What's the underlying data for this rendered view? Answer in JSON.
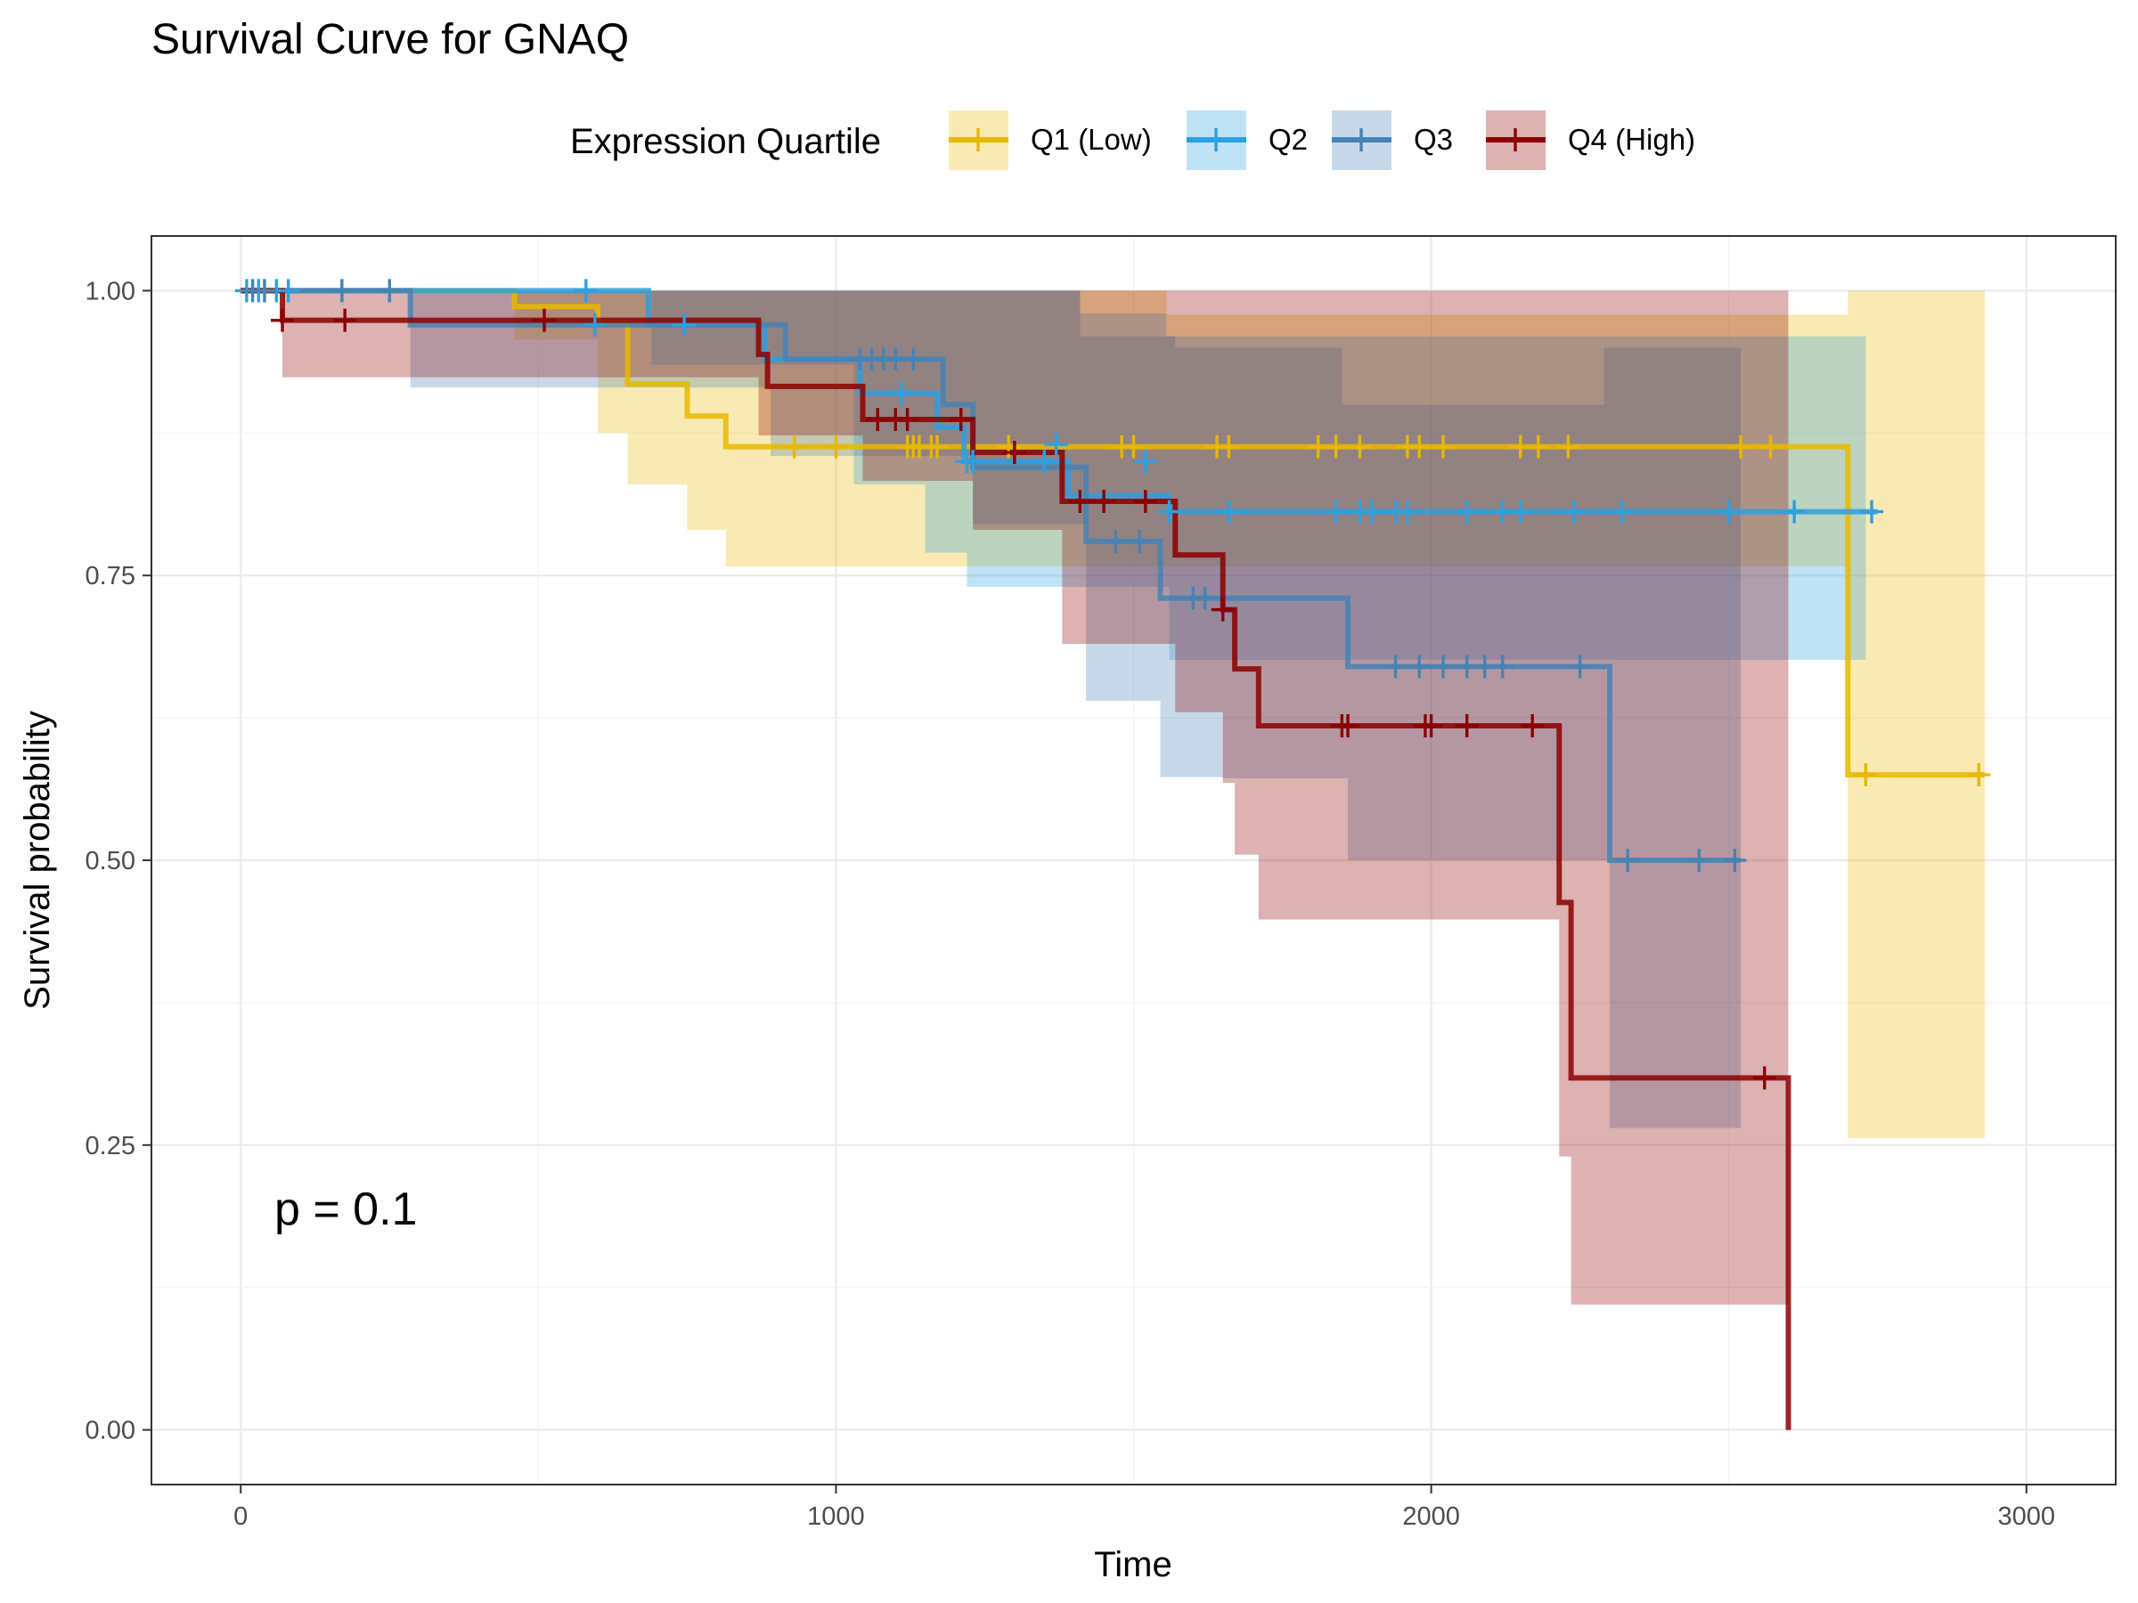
{
  "chart_data": {
    "type": "line",
    "subtype": "kaplan-meier",
    "title": "Survival Curve for GNAQ",
    "xlabel": "Time",
    "ylabel": "Survival probability",
    "xlim": [
      -150,
      3150
    ],
    "ylim": [
      -0.048,
      1.048
    ],
    "x_ticks": [
      0,
      1000,
      2000,
      3000
    ],
    "x_tick_labels": [
      "0",
      "1000",
      "2000",
      "3000"
    ],
    "y_ticks": [
      0,
      0.25,
      0.5,
      0.75,
      1
    ],
    "y_tick_labels": [
      "0.00",
      "0.25",
      "0.50",
      "0.75",
      "1.00"
    ],
    "grid": true,
    "legend_position": "top",
    "legend_title": "Expression Quartile",
    "annotation": "p = 0.1",
    "series": [
      {
        "name": "Q1 (Low)",
        "color": "#E7B800",
        "steps": [
          [
            0,
            1
          ],
          [
            460,
            0.986
          ],
          [
            600,
            0.986
          ],
          [
            600,
            0.972
          ],
          [
            650,
            0.945
          ],
          [
            650,
            0.918
          ],
          [
            750,
            0.918
          ],
          [
            750,
            0.89
          ],
          [
            815,
            0.89
          ],
          [
            815,
            0.863
          ],
          [
            2700,
            0.863
          ],
          [
            2700,
            0.575
          ],
          [
            2930,
            0.575
          ]
        ],
        "ci_upper": [
          [
            0,
            1
          ],
          [
            1555,
            1
          ],
          [
            1555,
            0.979
          ],
          [
            2700,
            0.979
          ],
          [
            2700,
            1
          ],
          [
            2930,
            1
          ]
        ],
        "ci_lower": [
          [
            0,
            1
          ],
          [
            460,
            0.957
          ],
          [
            600,
            0.957
          ],
          [
            600,
            0.875
          ],
          [
            650,
            0.875
          ],
          [
            650,
            0.83
          ],
          [
            750,
            0.83
          ],
          [
            750,
            0.79
          ],
          [
            815,
            0.79
          ],
          [
            815,
            0.758
          ],
          [
            1220,
            0.758
          ],
          [
            1220,
            0.758
          ],
          [
            2700,
            0.758
          ],
          [
            2700,
            0.256
          ],
          [
            2930,
            0.256
          ]
        ],
        "censors": [
          [
            40,
            1
          ],
          [
            930,
            0.863
          ],
          [
            1000,
            0.863
          ],
          [
            1120,
            0.863
          ],
          [
            1130,
            0.863
          ],
          [
            1140,
            0.863
          ],
          [
            1160,
            0.863
          ],
          [
            1170,
            0.863
          ],
          [
            1290,
            0.863
          ],
          [
            1480,
            0.863
          ],
          [
            1500,
            0.863
          ],
          [
            1640,
            0.863
          ],
          [
            1660,
            0.863
          ],
          [
            1810,
            0.863
          ],
          [
            1840,
            0.863
          ],
          [
            1880,
            0.863
          ],
          [
            1960,
            0.863
          ],
          [
            1980,
            0.863
          ],
          [
            2020,
            0.863
          ],
          [
            2150,
            0.863
          ],
          [
            2180,
            0.863
          ],
          [
            2230,
            0.863
          ],
          [
            2520,
            0.863
          ],
          [
            2570,
            0.863
          ],
          [
            2730,
            0.575
          ],
          [
            2920,
            0.575
          ]
        ]
      },
      {
        "name": "Q2",
        "color": "#2E9FDF",
        "steps": [
          [
            0,
            1
          ],
          [
            685,
            1
          ],
          [
            685,
            0.97
          ],
          [
            880,
            0.97
          ],
          [
            880,
            0.94
          ],
          [
            1040,
            0.94
          ],
          [
            1040,
            0.91
          ],
          [
            1170,
            0.91
          ],
          [
            1170,
            0.88
          ],
          [
            1215,
            0.88
          ],
          [
            1215,
            0.85
          ],
          [
            1390,
            0.85
          ],
          [
            1390,
            0.82
          ],
          [
            1560,
            0.82
          ],
          [
            1560,
            0.806
          ],
          [
            2750,
            0.806
          ]
        ],
        "ci_upper": [
          [
            0,
            1
          ],
          [
            1410,
            1
          ],
          [
            1410,
            0.98
          ],
          [
            1555,
            0.98
          ],
          [
            1555,
            0.96
          ],
          [
            2730,
            0.96
          ]
        ],
        "ci_lower": [
          [
            0,
            1
          ],
          [
            690,
            1
          ],
          [
            690,
            0.935
          ],
          [
            1030,
            0.935
          ],
          [
            1030,
            0.83
          ],
          [
            1150,
            0.83
          ],
          [
            1150,
            0.77
          ],
          [
            1220,
            0.77
          ],
          [
            1220,
            0.74
          ],
          [
            1560,
            0.74
          ],
          [
            1560,
            0.676
          ],
          [
            2730,
            0.676
          ]
        ],
        "censors": [
          [
            10,
            1
          ],
          [
            30,
            1
          ],
          [
            60,
            1
          ],
          [
            80,
            1
          ],
          [
            580,
            1
          ],
          [
            595,
            0.97
          ],
          [
            745,
            0.97
          ],
          [
            1110,
            0.91
          ],
          [
            1220,
            0.85
          ],
          [
            1230,
            0.85
          ],
          [
            1350,
            0.85
          ],
          [
            1370,
            0.865
          ],
          [
            1520,
            0.85
          ],
          [
            1560,
            0.806
          ],
          [
            1660,
            0.806
          ],
          [
            1840,
            0.806
          ],
          [
            1880,
            0.806
          ],
          [
            1900,
            0.806
          ],
          [
            1940,
            0.806
          ],
          [
            1960,
            0.806
          ],
          [
            2060,
            0.806
          ],
          [
            2120,
            0.806
          ],
          [
            2150,
            0.806
          ],
          [
            2240,
            0.806
          ],
          [
            2320,
            0.806
          ],
          [
            2500,
            0.806
          ],
          [
            2610,
            0.806
          ],
          [
            2740,
            0.806
          ]
        ]
      },
      {
        "name": "Q3",
        "color": "#4682B4",
        "steps": [
          [
            0,
            1
          ],
          [
            285,
            1
          ],
          [
            285,
            0.97
          ],
          [
            915,
            0.97
          ],
          [
            915,
            0.94
          ],
          [
            1040,
            0.94
          ],
          [
            1040,
            0.94
          ],
          [
            1180,
            0.94
          ],
          [
            1180,
            0.9
          ],
          [
            1230,
            0.9
          ],
          [
            1230,
            0.845
          ],
          [
            1420,
            0.845
          ],
          [
            1420,
            0.78
          ],
          [
            1545,
            0.78
          ],
          [
            1545,
            0.73
          ],
          [
            1860,
            0.73
          ],
          [
            1860,
            0.67
          ],
          [
            2300,
            0.67
          ],
          [
            2300,
            0.5
          ],
          [
            2520,
            0.5
          ]
        ],
        "ci_upper": [
          [
            0,
            1
          ],
          [
            1410,
            1
          ],
          [
            1410,
            0.96
          ],
          [
            1570,
            0.96
          ],
          [
            1570,
            0.95
          ],
          [
            1850,
            0.95
          ],
          [
            1850,
            0.9
          ],
          [
            2290,
            0.9
          ],
          [
            2290,
            0.95
          ],
          [
            2520,
            0.95
          ]
        ],
        "ci_lower": [
          [
            0,
            1
          ],
          [
            285,
            1
          ],
          [
            285,
            0.915
          ],
          [
            890,
            0.915
          ],
          [
            890,
            0.855
          ],
          [
            1230,
            0.855
          ],
          [
            1230,
            0.795
          ],
          [
            1420,
            0.795
          ],
          [
            1420,
            0.7
          ],
          [
            1420,
            0.64
          ],
          [
            1545,
            0.64
          ],
          [
            1545,
            0.573
          ],
          [
            1650,
            0.573
          ],
          [
            1650,
            0.572
          ],
          [
            1860,
            0.572
          ],
          [
            1860,
            0.5
          ],
          [
            2300,
            0.5
          ],
          [
            2300,
            0.265
          ],
          [
            2520,
            0.265
          ]
        ],
        "censors": [
          [
            20,
            1
          ],
          [
            40,
            1
          ],
          [
            170,
            1
          ],
          [
            250,
            1
          ],
          [
            1040,
            0.94
          ],
          [
            1060,
            0.94
          ],
          [
            1080,
            0.94
          ],
          [
            1100,
            0.94
          ],
          [
            1130,
            0.94
          ],
          [
            1470,
            0.78
          ],
          [
            1510,
            0.78
          ],
          [
            1600,
            0.73
          ],
          [
            1620,
            0.73
          ],
          [
            1940,
            0.67
          ],
          [
            1980,
            0.67
          ],
          [
            2020,
            0.67
          ],
          [
            2060,
            0.67
          ],
          [
            2090,
            0.67
          ],
          [
            2120,
            0.67
          ],
          [
            2250,
            0.67
          ],
          [
            2330,
            0.5
          ],
          [
            2450,
            0.5
          ],
          [
            2510,
            0.5
          ]
        ]
      },
      {
        "name": "Q4 (High)",
        "color": "#8B0000",
        "steps": [
          [
            0,
            1
          ],
          [
            70,
            1
          ],
          [
            70,
            0.974
          ],
          [
            870,
            0.974
          ],
          [
            870,
            0.944
          ],
          [
            885,
            0.944
          ],
          [
            885,
            0.916
          ],
          [
            1045,
            0.916
          ],
          [
            1045,
            0.887
          ],
          [
            1230,
            0.887
          ],
          [
            1230,
            0.858
          ],
          [
            1380,
            0.858
          ],
          [
            1380,
            0.815
          ],
          [
            1570,
            0.815
          ],
          [
            1570,
            0.768
          ],
          [
            1650,
            0.768
          ],
          [
            1650,
            0.72
          ],
          [
            1670,
            0.72
          ],
          [
            1670,
            0.668
          ],
          [
            1710,
            0.668
          ],
          [
            1710,
            0.618
          ],
          [
            2215,
            0.618
          ],
          [
            2215,
            0.463
          ],
          [
            2235,
            0.463
          ],
          [
            2235,
            0.309
          ],
          [
            2600,
            0.309
          ],
          [
            2600,
            0
          ]
        ],
        "ci_upper": [
          [
            0,
            1
          ],
          [
            2600,
            1
          ]
        ],
        "ci_lower": [
          [
            0,
            1
          ],
          [
            70,
            1
          ],
          [
            70,
            0.924
          ],
          [
            465,
            0.924
          ],
          [
            465,
            0.924
          ],
          [
            870,
            0.924
          ],
          [
            870,
            0.873
          ],
          [
            1045,
            0.873
          ],
          [
            1045,
            0.833
          ],
          [
            1230,
            0.833
          ],
          [
            1230,
            0.79
          ],
          [
            1380,
            0.79
          ],
          [
            1380,
            0.69
          ],
          [
            1570,
            0.69
          ],
          [
            1570,
            0.63
          ],
          [
            1650,
            0.63
          ],
          [
            1650,
            0.568
          ],
          [
            1670,
            0.568
          ],
          [
            1670,
            0.505
          ],
          [
            1710,
            0.505
          ],
          [
            1710,
            0.448
          ],
          [
            2215,
            0.448
          ],
          [
            2215,
            0.24
          ],
          [
            2235,
            0.24
          ],
          [
            2235,
            0.11
          ],
          [
            2600,
            0.11
          ]
        ],
        "censors": [
          [
            70,
            0.974
          ],
          [
            175,
            0.974
          ],
          [
            510,
            0.974
          ],
          [
            1070,
            0.887
          ],
          [
            1100,
            0.887
          ],
          [
            1120,
            0.887
          ],
          [
            1210,
            0.887
          ],
          [
            1300,
            0.858
          ],
          [
            1410,
            0.815
          ],
          [
            1450,
            0.815
          ],
          [
            1520,
            0.815
          ],
          [
            1650,
            0.72
          ],
          [
            1850,
            0.618
          ],
          [
            1860,
            0.618
          ],
          [
            1990,
            0.618
          ],
          [
            2000,
            0.618
          ],
          [
            2060,
            0.618
          ],
          [
            2170,
            0.618
          ],
          [
            2560,
            0.309
          ]
        ]
      }
    ]
  }
}
